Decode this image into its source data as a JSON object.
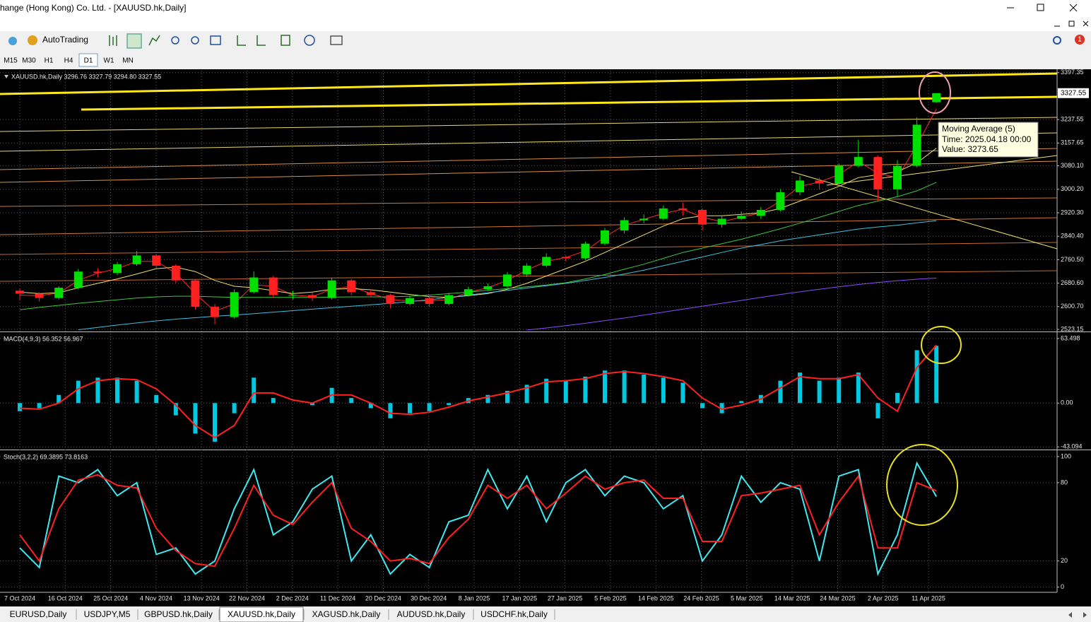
{
  "window": {
    "title": "hange (Hong Kong) Co. Ltd. - [XAUUSD.hk,Daily]"
  },
  "toolbar": {
    "autotrading": "AutoTrading",
    "badge": "1"
  },
  "timeframes": [
    "M15",
    "M30",
    "H1",
    "H4",
    "D1",
    "W1",
    "MN"
  ],
  "active_timeframe": 4,
  "x_axis": {
    "labels": [
      "7 Oct 2024",
      "16 Oct 2024",
      "25 Oct 2024",
      "4 Nov 2024",
      "13 Nov 2024",
      "22 Nov 2024",
      "2 Dec 2024",
      "11 Dec 2024",
      "20 Dec 2024",
      "30 Dec 2024",
      "8 Jan 2025",
      "17 Jan 2025",
      "27 Jan 2025",
      "5 Feb 2025",
      "14 Feb 2025",
      "24 Feb 2025",
      "5 Mar 2025",
      "14 Mar 2025",
      "24 Mar 2025",
      "2 Apr 2025",
      "11 Apr 2025"
    ]
  },
  "tooltip": [
    "Moving Average (5)",
    "Time: 2025.04.18 00:00",
    "Value: 3273.65"
  ],
  "tabs": [
    "EURUSD,Daily",
    "USDJPY,M5",
    "GBPUSD.hk,Daily",
    "XAUUSD.hk,Daily",
    "XAGUSD.hk,Daily",
    "AUDUSD.hk,Daily",
    "USDCHF.hk,Daily"
  ],
  "active_tab": 3,
  "chart_data": [
    {
      "type": "candlestick",
      "title": "XAUUSD.hk,Daily  3296.76 3327.79 3294.80 3327.55",
      "up_color": "#00e000",
      "down_color": "#ff2020",
      "open": [
        2655,
        2645,
        2630,
        2665,
        2720,
        2715,
        2745,
        2775,
        2740,
        2690,
        2600,
        2565,
        2650,
        2700,
        2640,
        2640,
        2630,
        2690,
        2650,
        2640,
        2610,
        2630,
        2610,
        2640,
        2660,
        2670,
        2710,
        2740,
        2770,
        2765,
        2815,
        2860,
        2895,
        2900,
        2935,
        2930,
        2880,
        2900,
        2910,
        2930,
        2990,
        3030,
        3020,
        3080,
        3110,
        3000,
        3080,
        3296.76
      ],
      "high": [
        2662,
        2650,
        2670,
        2728,
        2732,
        2752,
        2790,
        2780,
        2745,
        2695,
        2610,
        2660,
        2721,
        2705,
        2655,
        2650,
        2700,
        2695,
        2660,
        2645,
        2638,
        2635,
        2648,
        2668,
        2680,
        2718,
        2748,
        2782,
        2775,
        2822,
        2868,
        2905,
        2915,
        2945,
        2955,
        2935,
        2910,
        2925,
        2940,
        3000,
        3045,
        3040,
        3088,
        3168,
        3115,
        3100,
        3245,
        3327.79
      ],
      "low": [
        2625,
        2618,
        2625,
        2660,
        2700,
        2708,
        2740,
        2730,
        2680,
        2590,
        2540,
        2560,
        2645,
        2630,
        2625,
        2620,
        2625,
        2640,
        2632,
        2595,
        2605,
        2600,
        2605,
        2635,
        2655,
        2665,
        2702,
        2735,
        2755,
        2760,
        2810,
        2850,
        2885,
        2895,
        2910,
        2860,
        2870,
        2895,
        2900,
        2925,
        2980,
        3000,
        3015,
        3075,
        2960,
        2975,
        3075,
        3294.8
      ],
      "close": [
        2645,
        2630,
        2665,
        2720,
        2715,
        2745,
        2775,
        2740,
        2690,
        2600,
        2565,
        2650,
        2700,
        2640,
        2640,
        2630,
        2690,
        2650,
        2640,
        2610,
        2630,
        2610,
        2640,
        2660,
        2670,
        2710,
        2740,
        2770,
        2765,
        2815,
        2860,
        2895,
        2900,
        2935,
        2930,
        2880,
        2900,
        2910,
        2930,
        2990,
        3030,
        3020,
        3080,
        3110,
        3000,
        3080,
        3220,
        3327.55
      ],
      "lines": [
        {
          "color": "#ff2a2a",
          "values": [
            2640,
            2638,
            2647,
            2690,
            2715,
            2730,
            2755,
            2755,
            2715,
            2645,
            2585,
            2610,
            2675,
            2670,
            2640,
            2635,
            2660,
            2670,
            2645,
            2625,
            2620,
            2620,
            2625,
            2650,
            2665,
            2690,
            2725,
            2755,
            2768,
            2790,
            2838,
            2878,
            2898,
            2918,
            2932,
            2905,
            2890,
            2905,
            2920,
            2960,
            3010,
            3025,
            3050,
            3095,
            3055,
            3040,
            3150,
            3273.65
          ]
        },
        {
          "color": "#f0e070",
          "values": [
            2650,
            2645,
            2648,
            2665,
            2680,
            2695,
            2712,
            2730,
            2735,
            2720,
            2690,
            2670,
            2665,
            2655,
            2645,
            2650,
            2660,
            2662,
            2658,
            2650,
            2642,
            2635,
            2632,
            2638,
            2645,
            2660,
            2680,
            2705,
            2730,
            2755,
            2785,
            2815,
            2845,
            2875,
            2900,
            2910,
            2910,
            2915,
            2920,
            2935,
            2960,
            2985,
            3010,
            3040,
            3050,
            3060,
            3090,
            3140
          ]
        },
        {
          "color": "#3cc83c",
          "values": [
            2590,
            2598,
            2605,
            2612,
            2618,
            2624,
            2630,
            2634,
            2636,
            2636,
            2634,
            2632,
            2632,
            2632,
            2632,
            2632,
            2633,
            2634,
            2634,
            2634,
            2636,
            2640,
            2645,
            2650,
            2656,
            2662,
            2668,
            2674,
            2682,
            2695,
            2710,
            2728,
            2745,
            2765,
            2785,
            2800,
            2815,
            2830,
            2848,
            2866,
            2885,
            2905,
            2925,
            2945,
            2960,
            2975,
            2995,
            3024
          ]
        },
        {
          "color": "#40c0e0",
          "values": [
            null,
            null,
            null,
            2522,
            2530,
            2538,
            2545,
            2552,
            2558,
            2563,
            2568,
            2572,
            2577,
            2582,
            2587,
            2592,
            2597,
            2602,
            2607,
            2612,
            2618,
            2624,
            2632,
            2640,
            2648,
            2656,
            2664,
            2672,
            2680,
            2690,
            2700,
            2712,
            2725,
            2740,
            2755,
            2770,
            2785,
            2800,
            2812,
            2825,
            2835,
            2845,
            2855,
            2865,
            2872,
            2878,
            2886,
            2893
          ]
        },
        {
          "color": "#8a4cff",
          "values": [
            null,
            null,
            null,
            null,
            null,
            null,
            null,
            null,
            null,
            null,
            null,
            null,
            null,
            null,
            null,
            null,
            null,
            null,
            null,
            null,
            null,
            null,
            null,
            null,
            null,
            null,
            2521,
            2528,
            2536,
            2544,
            2553,
            2562,
            2572,
            2582,
            2592,
            2602,
            2612,
            2622,
            2632,
            2642,
            2651,
            2660,
            2668,
            2676,
            2683,
            2689,
            2694,
            2698
          ]
        }
      ],
      "current_price": 3327.55,
      "ylim": [
        2516,
        3404
      ],
      "yticks": [
        3397.35,
        3237.55,
        3157.65,
        {
          "value": 3080.1,
          "label": "3080.10"
        },
        {
          "value": 3000.2,
          "label": "3000.20"
        },
        {
          "value": 2920.3,
          "label": "2920.30"
        },
        {
          "value": 2840.4,
          "label": "2840.40"
        },
        {
          "value": 2760.5,
          "label": "2760.50"
        },
        {
          "value": 2680.6,
          "label": "2680.60"
        },
        {
          "value": 2600.7,
          "label": "2600.70"
        },
        2523.15
      ],
      "grid": true
    },
    {
      "type": "bar",
      "title": "MACD(4,9,3) 56.352 56.967",
      "color": "#00c8e0",
      "values": [
        -8,
        -5,
        8,
        22,
        25,
        25,
        22,
        8,
        -12,
        -30,
        -38,
        -10,
        25,
        5,
        0,
        -2,
        15,
        5,
        -5,
        -15,
        -10,
        -8,
        -2,
        5,
        8,
        12,
        18,
        24,
        22,
        26,
        32,
        32,
        28,
        25,
        20,
        -5,
        -10,
        2,
        8,
        22,
        30,
        22,
        25,
        30,
        -15,
        10,
        52,
        56.352
      ],
      "signal": {
        "color": "#ff2020",
        "values": [
          -5,
          -6,
          0,
          14,
          22,
          24,
          23,
          14,
          -2,
          -22,
          -34,
          -22,
          10,
          10,
          3,
          0,
          8,
          8,
          0,
          -10,
          -11,
          -9,
          -4,
          2,
          6,
          10,
          15,
          21,
          22,
          24,
          29,
          31,
          29,
          26,
          22,
          5,
          -6,
          -2,
          4,
          15,
          26,
          24,
          24,
          28,
          5,
          -8,
          35,
          56.967
        ]
      },
      "ylim": [
        -45,
        69
      ],
      "yticks": [
        63.498,
        {
          "value": 0,
          "label": "0.00"
        },
        -43.094
      ],
      "grid": true
    },
    {
      "type": "line",
      "title": "Stoch(3,2,2) 69.3895 73.8163",
      "series": [
        {
          "color": "#40e8f0",
          "values": [
            30,
            15,
            85,
            80,
            90,
            70,
            80,
            25,
            30,
            10,
            20,
            60,
            90,
            40,
            50,
            75,
            85,
            20,
            40,
            10,
            25,
            15,
            50,
            55,
            90,
            60,
            85,
            50,
            80,
            90,
            70,
            85,
            80,
            60,
            70,
            20,
            40,
            85,
            65,
            80,
            75,
            20,
            85,
            90,
            10,
            40,
            95,
            69.3895
          ]
        },
        {
          "color": "#ff2020",
          "values": [
            40,
            20,
            60,
            82,
            86,
            78,
            76,
            45,
            28,
            18,
            16,
            45,
            78,
            55,
            48,
            65,
            80,
            45,
            35,
            20,
            22,
            18,
            38,
            52,
            78,
            68,
            78,
            60,
            72,
            85,
            75,
            80,
            82,
            68,
            68,
            35,
            35,
            70,
            72,
            75,
            78,
            40,
            65,
            85,
            30,
            30,
            80,
            73.8163
          ]
        }
      ],
      "ylim": [
        -4,
        104.3
      ],
      "yticks": [
        100,
        80,
        20,
        0
      ],
      "grid": true
    }
  ]
}
